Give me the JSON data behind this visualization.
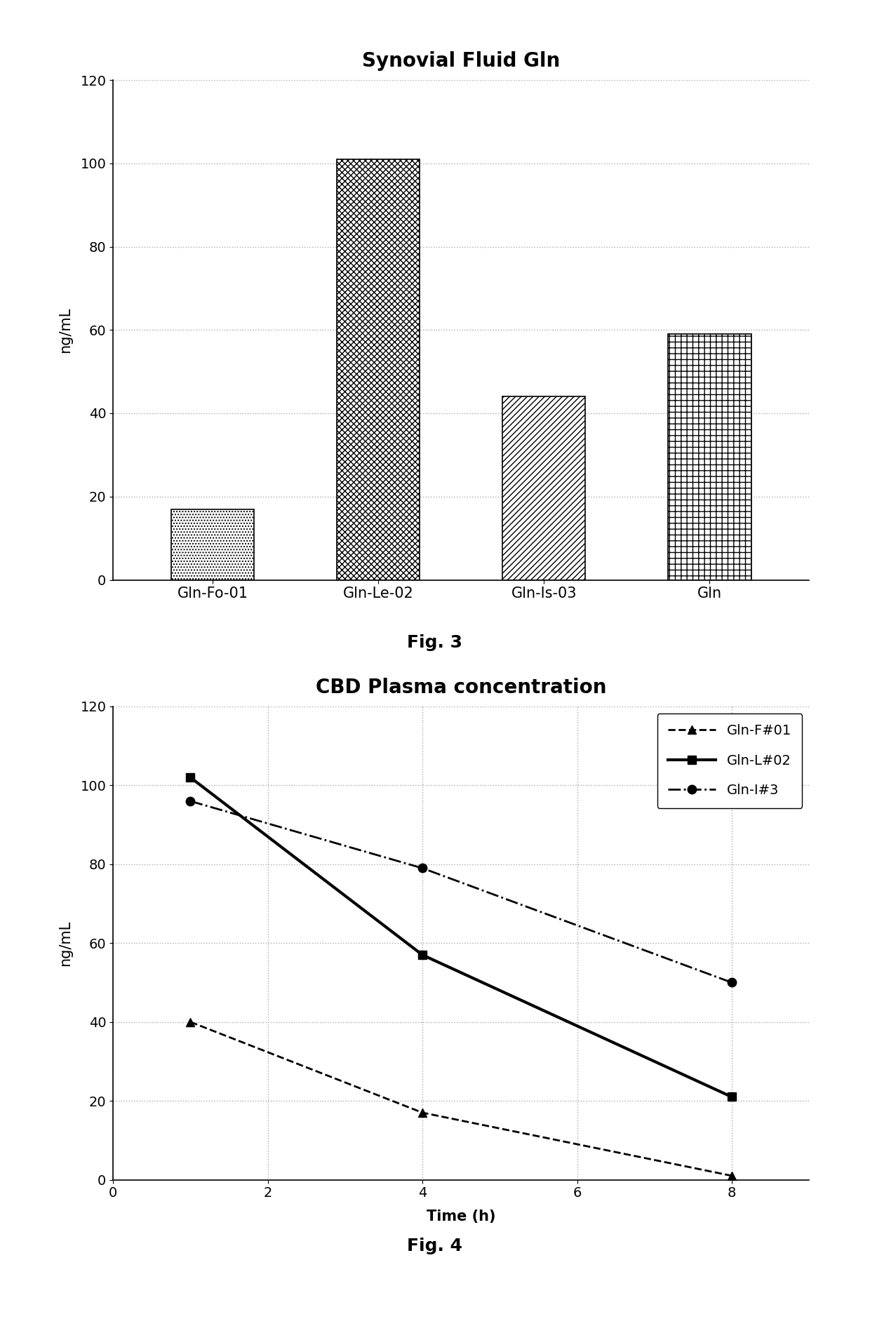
{
  "fig3": {
    "title": "Synovial Fluid Gln",
    "categories": [
      "Gln-Fo-01",
      "Gln-Le-02",
      "Gln-Is-03",
      "Gln"
    ],
    "values": [
      17,
      101,
      44,
      59
    ],
    "ylabel": "ng/mL",
    "ylim": [
      0,
      120
    ],
    "yticks": [
      0,
      20,
      40,
      60,
      80,
      100,
      120
    ],
    "caption": "Fig. 3",
    "hatch_patterns": [
      "....",
      "xxxx",
      "////",
      "++"
    ],
    "bar_color": "#ffffff",
    "bar_edgecolor": "#000000"
  },
  "fig4": {
    "title": "CBD Plasma concentration",
    "ylabel": "ng/mL",
    "xlabel": "Time (h)",
    "ylim": [
      0,
      120
    ],
    "xlim": [
      0,
      9
    ],
    "yticks": [
      0,
      20,
      40,
      60,
      80,
      100,
      120
    ],
    "xticks": [
      0,
      2,
      4,
      6,
      8
    ],
    "caption": "Fig. 4",
    "series": [
      {
        "label": "Gln-F#01",
        "x": [
          1,
          4,
          8
        ],
        "y": [
          40,
          17,
          1
        ],
        "linestyle": "--",
        "marker": "^",
        "linewidth": 2,
        "color": "#000000",
        "markersize": 9,
        "markerfacecolor": "#000000"
      },
      {
        "label": "Gln-L#02",
        "x": [
          1,
          4,
          8
        ],
        "y": [
          102,
          57,
          21
        ],
        "linestyle": "-",
        "marker": "s",
        "linewidth": 3,
        "color": "#000000",
        "markersize": 9,
        "markerfacecolor": "#000000"
      },
      {
        "label": "Gln-I#3",
        "x": [
          1,
          4,
          8
        ],
        "y": [
          96,
          79,
          50
        ],
        "linestyle": "-.",
        "marker": "o",
        "linewidth": 2,
        "color": "#000000",
        "markersize": 9,
        "markerfacecolor": "#000000"
      }
    ]
  },
  "background_color": "#ffffff",
  "title_fontsize": 20,
  "label_fontsize": 15,
  "tick_fontsize": 14,
  "caption_fontsize": 18
}
